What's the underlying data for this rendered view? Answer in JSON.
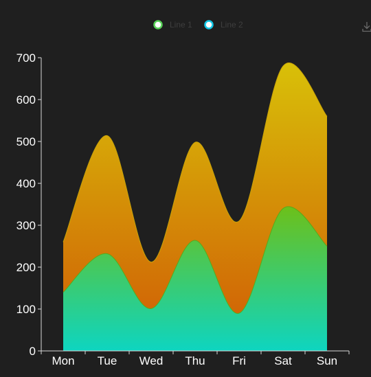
{
  "toolbox": {
    "download_icon": "download-icon"
  },
  "legend": {
    "items": [
      {
        "label": "Line 1",
        "color": "#58d158"
      },
      {
        "label": "Line 2",
        "color": "#12c8e8"
      }
    ]
  },
  "chart_data": {
    "type": "area",
    "categories": [
      "Mon",
      "Tue",
      "Wed",
      "Thu",
      "Fri",
      "Sat",
      "Sun"
    ],
    "series": [
      {
        "name": "Line 1",
        "values": [
          140,
          232,
          101,
          264,
          90,
          340,
          250
        ],
        "gradient": [
          "#0ed5c0",
          "#6cc01a"
        ]
      },
      {
        "name": "Line 2",
        "values": [
          120,
          282,
          111,
          234,
          220,
          340,
          310
        ],
        "stacked_totals": [
          260,
          514,
          212,
          498,
          310,
          680,
          560
        ],
        "gradient": [
          "#d05a06",
          "#d8c008"
        ]
      }
    ],
    "stacked": true,
    "smooth": true,
    "ylim": [
      0,
      700
    ],
    "yticks": [
      0,
      100,
      200,
      300,
      400,
      500,
      600,
      700
    ],
    "grid": false,
    "legend_position": "top-center",
    "title": "",
    "xlabel": "",
    "ylabel": ""
  }
}
